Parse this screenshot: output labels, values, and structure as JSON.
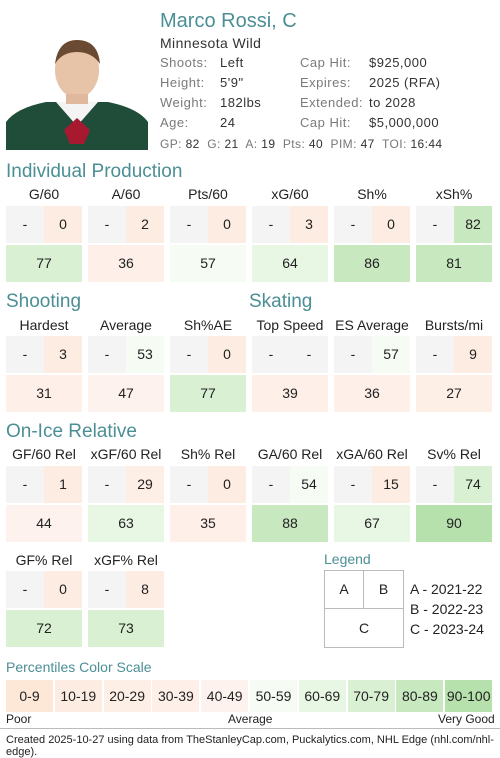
{
  "colors": {
    "accent": "#4b8f95",
    "scale": [
      "#fde8d8",
      "#fdece1",
      "#fdefe6",
      "#feefe8",
      "#fdf2ed",
      "#f6fbf4",
      "#e8f6e4",
      "#d9f0d3",
      "#c8e8c0",
      "#b6e0ac"
    ]
  },
  "player": {
    "name": "Marco Rossi, C",
    "team": "Minnesota Wild",
    "shoots_label": "Shoots:",
    "shoots": "Left",
    "height_label": "Height:",
    "height": "5'9\"",
    "weight_label": "Weight:",
    "weight": "182lbs",
    "age_label": "Age:",
    "age": "24",
    "caphit_label": "Cap Hit:",
    "caphit": "$925,000",
    "expires_label": "Expires:",
    "expires": "2025 (RFA)",
    "extended_label": "Extended:",
    "extended": "to 2028",
    "caphit2_label": "Cap Hit:",
    "caphit2": "$5,000,000"
  },
  "statbar": {
    "gp_label": "GP:",
    "gp": "82",
    "g_label": "G:",
    "g": "21",
    "a_label": "A:",
    "a": "19",
    "pts_label": "Pts:",
    "pts": "40",
    "pim_label": "PIM:",
    "pim": "47",
    "toi_label": "TOI:",
    "toi": "16:44"
  },
  "sections": {
    "individual": "Individual Production",
    "shooting": "Shooting",
    "skating": "Skating",
    "onice": "On-Ice Relative",
    "legend": "Legend",
    "scale": "Percentiles Color Scale"
  },
  "metrics": [
    {
      "label": "G/60",
      "a": "-",
      "b": "0",
      "c": "77",
      "a_pct": null,
      "b_pct": 10,
      "c_pct": 77
    },
    {
      "label": "A/60",
      "a": "-",
      "b": "2",
      "c": "36",
      "a_pct": null,
      "b_pct": 12,
      "c_pct": 36
    },
    {
      "label": "Pts/60",
      "a": "-",
      "b": "0",
      "c": "57",
      "a_pct": null,
      "b_pct": 10,
      "c_pct": 57
    },
    {
      "label": "xG/60",
      "a": "-",
      "b": "3",
      "c": "64",
      "a_pct": null,
      "b_pct": 12,
      "c_pct": 64
    },
    {
      "label": "Sh%",
      "a": "-",
      "b": "0",
      "c": "86",
      "a_pct": null,
      "b_pct": 10,
      "c_pct": 86
    },
    {
      "label": "xSh%",
      "a": "-",
      "b": "82",
      "c": "81",
      "a_pct": null,
      "b_pct": 82,
      "c_pct": 81
    },
    {
      "label": "Hardest",
      "a": "-",
      "b": "3",
      "c": "31",
      "a_pct": null,
      "b_pct": 12,
      "c_pct": 31
    },
    {
      "label": "Average",
      "a": "-",
      "b": "53",
      "c": "47",
      "a_pct": null,
      "b_pct": 53,
      "c_pct": 47
    },
    {
      "label": "Sh%AE",
      "a": "-",
      "b": "0",
      "c": "77",
      "a_pct": null,
      "b_pct": 10,
      "c_pct": 77
    },
    {
      "label": "Top Speed",
      "a": "-",
      "b": "-",
      "c": "39",
      "a_pct": null,
      "b_pct": null,
      "c_pct": 39
    },
    {
      "label": "ES Average",
      "a": "-",
      "b": "57",
      "c": "36",
      "a_pct": null,
      "b_pct": 57,
      "c_pct": 36
    },
    {
      "label": "Bursts/mi",
      "a": "-",
      "b": "9",
      "c": "27",
      "a_pct": null,
      "b_pct": 12,
      "c_pct": 27
    },
    {
      "label": "GF/60 Rel",
      "a": "-",
      "b": "1",
      "c": "44",
      "a_pct": null,
      "b_pct": 12,
      "c_pct": 44
    },
    {
      "label": "xGF/60 Rel",
      "a": "-",
      "b": "29",
      "c": "63",
      "a_pct": null,
      "b_pct": 29,
      "c_pct": 63
    },
    {
      "label": "Sh% Rel",
      "a": "-",
      "b": "0",
      "c": "35",
      "a_pct": null,
      "b_pct": 10,
      "c_pct": 35
    },
    {
      "label": "GA/60 Rel",
      "a": "-",
      "b": "54",
      "c": "88",
      "a_pct": null,
      "b_pct": 54,
      "c_pct": 88
    },
    {
      "label": "xGA/60 Rel",
      "a": "-",
      "b": "15",
      "c": "67",
      "a_pct": null,
      "b_pct": 15,
      "c_pct": 67
    },
    {
      "label": "Sv% Rel",
      "a": "-",
      "b": "74",
      "c": "90",
      "a_pct": null,
      "b_pct": 74,
      "c_pct": 90
    },
    {
      "label": "GF% Rel",
      "a": "-",
      "b": "0",
      "c": "72",
      "a_pct": null,
      "b_pct": 10,
      "c_pct": 72
    },
    {
      "label": "xGF% Rel",
      "a": "-",
      "b": "8",
      "c": "73",
      "a_pct": null,
      "b_pct": 12,
      "c_pct": 73
    }
  ],
  "legend": {
    "a": "A",
    "b": "B",
    "c": "C",
    "a_text": "A - 2021-22",
    "b_text": "B - 2022-23",
    "c_text": "C - 2023-24"
  },
  "scale": {
    "bins": [
      "0-9",
      "10-19",
      "20-29",
      "30-39",
      "40-49",
      "50-59",
      "60-69",
      "70-79",
      "80-89",
      "90-100"
    ],
    "poor": "Poor",
    "average": "Average",
    "very_good": "Very Good"
  },
  "footer": "Created 2025-10-27 using data from TheStanleyCap.com, Puckalytics.com, NHL Edge (nhl.com/nhl-edge)."
}
